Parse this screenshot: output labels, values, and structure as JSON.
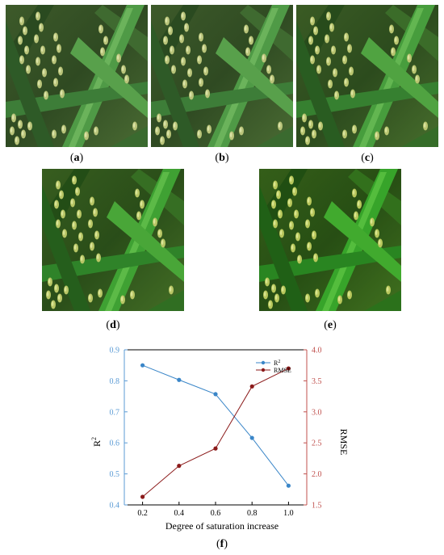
{
  "panels": [
    {
      "label": "a"
    },
    {
      "label": "b"
    },
    {
      "label": "c"
    },
    {
      "label": "d"
    },
    {
      "label": "e"
    },
    {
      "label": "f"
    }
  ],
  "chart_data": {
    "type": "line",
    "x": [
      0.2,
      0.4,
      0.6,
      0.8,
      1.0
    ],
    "xlabel": "Degree of saturation increase",
    "x_ticks": [
      "0.2",
      "0.4",
      "0.6",
      "0.8",
      "1.0"
    ],
    "xlim": [
      0.1,
      1.1
    ],
    "left_axis": {
      "label": "R",
      "label_sup": "2",
      "ylim": [
        0.4,
        0.9
      ],
      "ticks": [
        "0.4",
        "0.5",
        "0.6",
        "0.7",
        "0.8",
        "0.9"
      ],
      "color": "#5b9bd5"
    },
    "right_axis": {
      "label": "RMSE",
      "ylim": [
        1.5,
        4.0
      ],
      "ticks": [
        "1.5",
        "2.0",
        "2.5",
        "3.0",
        "3.5",
        "4.0"
      ],
      "color": "#c0504d"
    },
    "series": [
      {
        "name": "R",
        "name_sup": "2",
        "axis": "left",
        "color": "#3a86c8",
        "values": [
          0.85,
          0.803,
          0.757,
          0.616,
          0.462
        ]
      },
      {
        "name": "RMSE",
        "axis": "right",
        "color": "#8b1a1a",
        "values": [
          1.63,
          2.13,
          2.41,
          3.41,
          3.7
        ]
      }
    ],
    "legend_position": "top-right",
    "grid": false
  }
}
